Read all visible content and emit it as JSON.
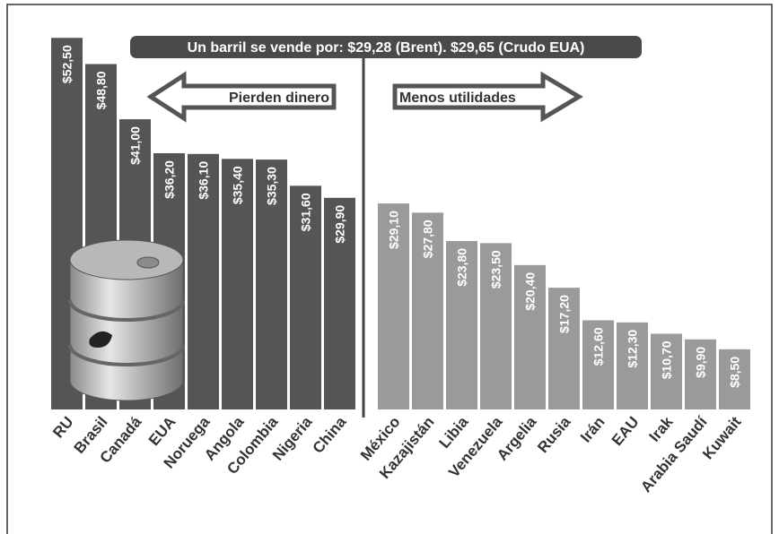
{
  "chart_data": {
    "type": "bar",
    "title": "Un barril se vende por: $29,28 (Brent). $29,65 (Crudo EUA)",
    "annotations": [
      "Pierden dinero",
      "Menos utilidades"
    ],
    "categories": [
      "RU",
      "Brasil",
      "Canadá",
      "EUA",
      "Noruega",
      "Angola",
      "Colombia",
      "Nigeria",
      "China",
      "México",
      "Kazajistán",
      "Libia",
      "Venezuela",
      "Argelia",
      "Rusia",
      "Irán",
      "EAU",
      "Irak",
      "Arabia Saudí",
      "Kuwait"
    ],
    "values": [
      52.5,
      48.8,
      41.0,
      36.2,
      36.1,
      35.4,
      35.3,
      31.6,
      29.9,
      29.1,
      27.8,
      23.8,
      23.5,
      20.4,
      17.2,
      12.6,
      12.3,
      10.7,
      9.9,
      8.5
    ],
    "value_labels": [
      "$52,50",
      "$48,80",
      "$41,00",
      "$36,20",
      "$36,10",
      "$35,40",
      "$35,30",
      "$31,60",
      "$29,90",
      "$29,10",
      "$27,80",
      "$23,80",
      "$23,50",
      "$20,40",
      "$17,20",
      "$12,60",
      "$12,30",
      "$10,70",
      "$9,90",
      "$8,50"
    ],
    "colors": [
      "#555555",
      "#555555",
      "#555555",
      "#555555",
      "#555555",
      "#555555",
      "#555555",
      "#555555",
      "#555555",
      "#9a9a9a",
      "#9a9a9a",
      "#9a9a9a",
      "#9a9a9a",
      "#9a9a9a",
      "#9a9a9a",
      "#9a9a9a",
      "#9a9a9a",
      "#9a9a9a",
      "#9a9a9a",
      "#9a9a9a"
    ]
  }
}
